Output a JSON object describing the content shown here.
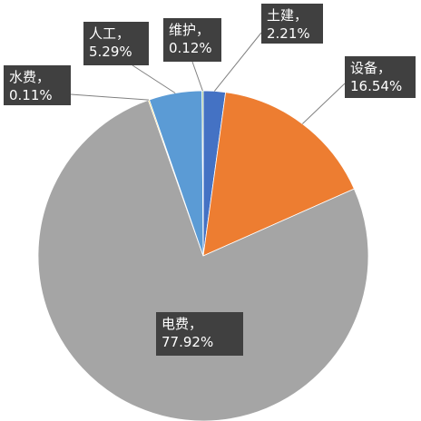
{
  "chart_data": {
    "type": "pie",
    "slices": [
      {
        "label": "土建，",
        "value": 2.21,
        "display": "2.21%",
        "color": "#4472c4"
      },
      {
        "label": "设备，",
        "value": 16.54,
        "display": "16.54%",
        "color": "#ed7d31"
      },
      {
        "label": "电费，",
        "value": 77.92,
        "display": "77.92%",
        "color": "#a5a5a5"
      },
      {
        "label": "水费，",
        "value": 0.11,
        "display": "0.11%",
        "color": "#ffc000"
      },
      {
        "label": "人工，",
        "value": 5.29,
        "display": "5.29%",
        "color": "#5b9bd5"
      },
      {
        "label": "维护，",
        "value": 0.12,
        "display": "0.12%",
        "color": "#70ad47"
      }
    ],
    "start": "12 o'clock",
    "direction": "clockwise",
    "label_background": "#404040",
    "leader_line_color": "#808080"
  }
}
